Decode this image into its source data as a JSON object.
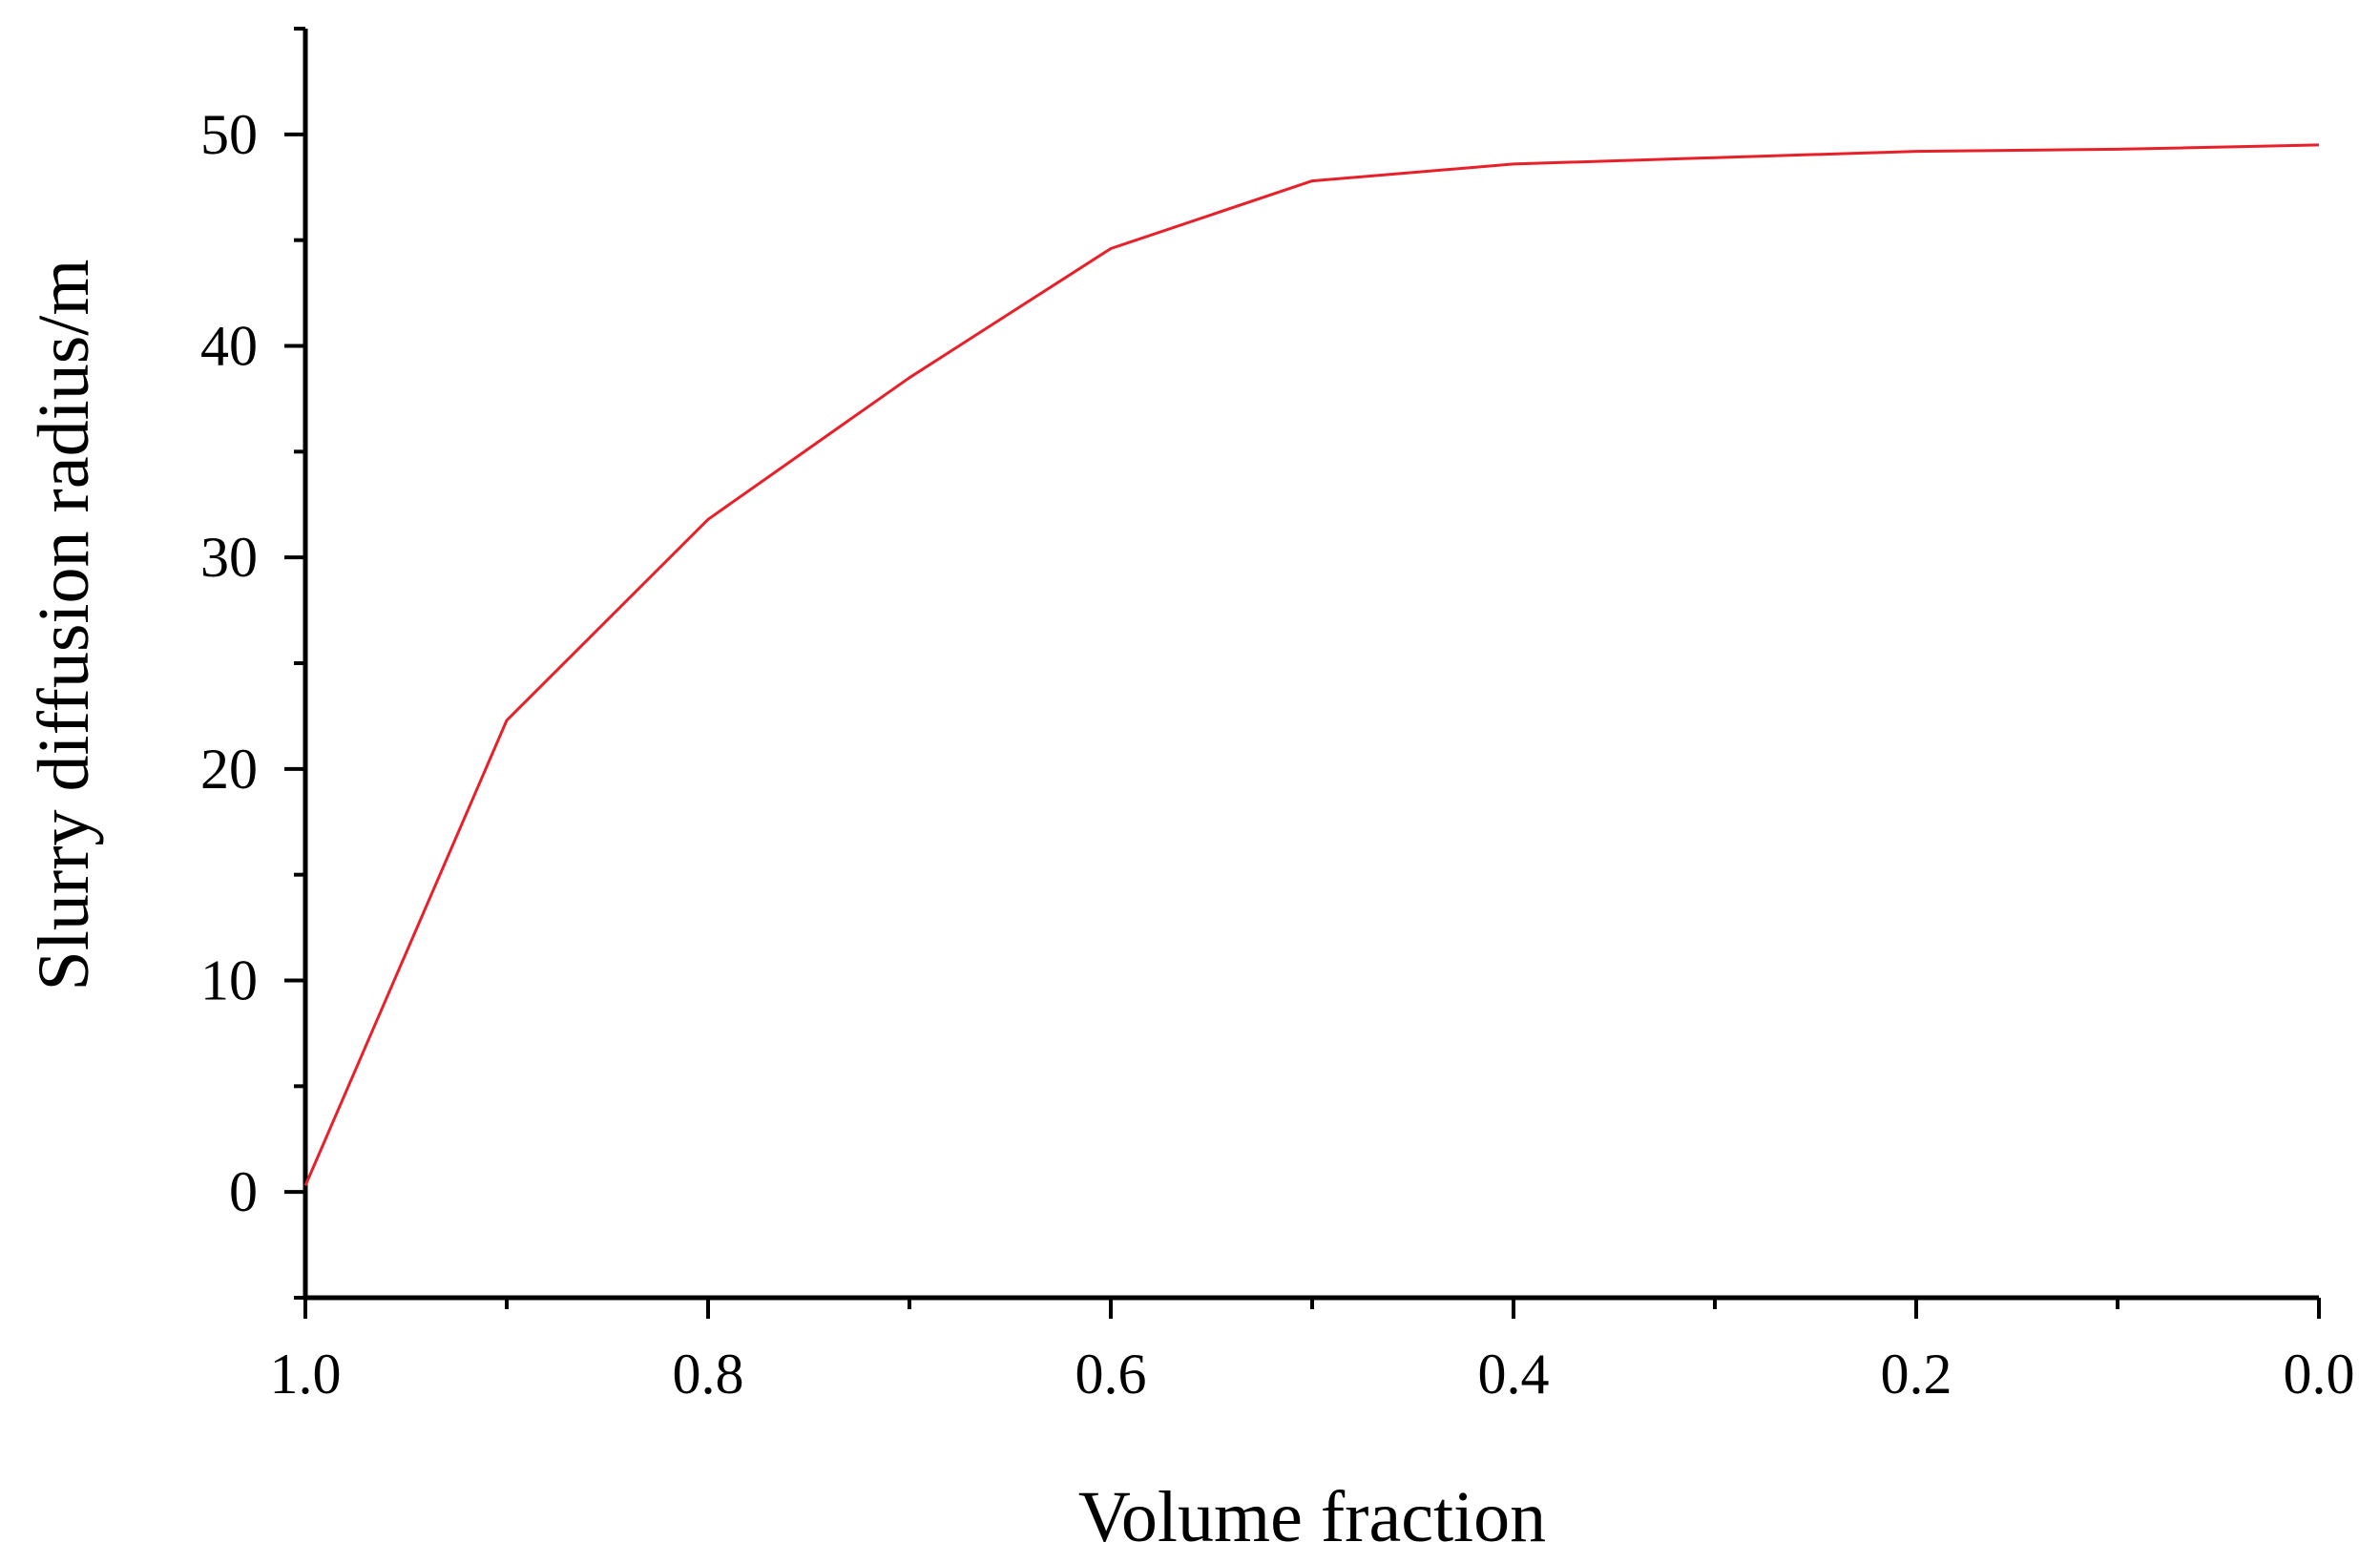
{
  "chart_data": {
    "type": "line",
    "title": "",
    "xlabel": "Volume fraction",
    "ylabel": "Slurry diffusion radius/m",
    "xlim": [
      1.0,
      0.0
    ],
    "ylim": [
      -5,
      55
    ],
    "x_reversed": true,
    "grid": false,
    "legend": "none",
    "x_ticks": [
      "1.0",
      "0.8",
      "0.6",
      "0.4",
      "0.2",
      "0.0"
    ],
    "x_tick_values": [
      1.0,
      0.8,
      0.6,
      0.4,
      0.2,
      0.0
    ],
    "x_minor_tick_values": [
      0.9,
      0.7,
      0.5,
      0.3,
      0.1
    ],
    "y_ticks": [
      "0",
      "10",
      "20",
      "30",
      "40",
      "50"
    ],
    "y_tick_values": [
      0,
      10,
      20,
      30,
      40,
      50
    ],
    "y_minor_tick_values": [
      -5,
      5,
      15,
      25,
      35,
      45,
      55
    ],
    "series": [
      {
        "color": "#e8202a",
        "x": [
          1.0,
          0.9,
          0.8,
          0.7,
          0.6,
          0.5,
          0.4,
          0.3,
          0.2,
          0.1,
          0.0
        ],
        "y": [
          0.3,
          22.3,
          31.8,
          38.5,
          44.6,
          47.8,
          48.6,
          48.9,
          49.2,
          49.3,
          49.5
        ]
      }
    ]
  }
}
